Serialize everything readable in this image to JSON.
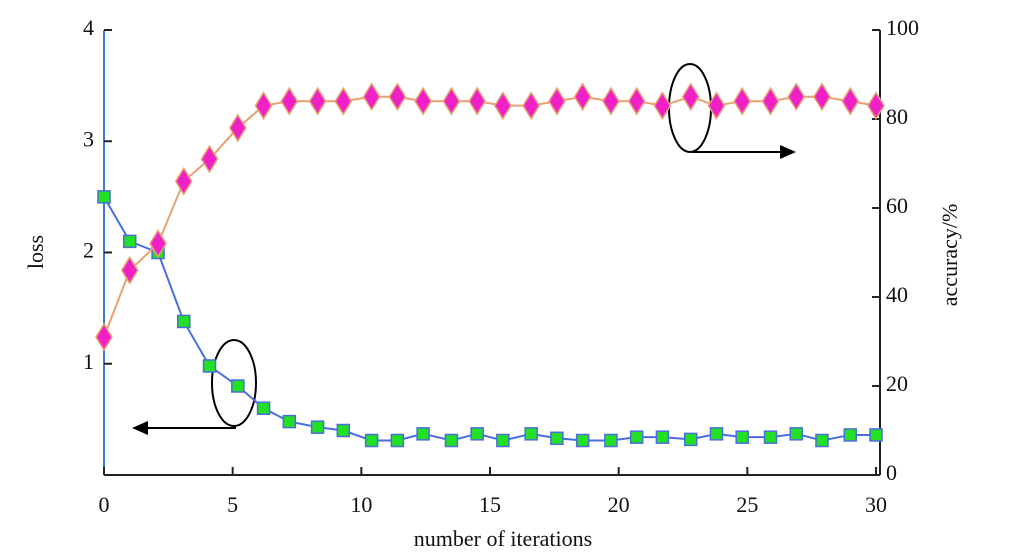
{
  "chart_data": {
    "type": "line",
    "xlabel": "number of iterations",
    "ylabel": "loss",
    "y2label": "accuracy/%",
    "x": [
      0,
      1.0,
      2.1,
      3.1,
      4.1,
      5.2,
      6.2,
      7.2,
      8.3,
      9.3,
      10.4,
      11.4,
      12.4,
      13.5,
      14.5,
      15.5,
      16.6,
      17.6,
      18.6,
      19.7,
      20.7,
      21.7,
      22.8,
      23.8,
      24.8,
      25.9,
      26.9,
      27.9,
      29.0,
      30.0
    ],
    "xlim": [
      0,
      30
    ],
    "xticks": [
      0,
      5,
      10,
      15,
      20,
      25,
      30
    ],
    "ylim": [
      0,
      4
    ],
    "yticks": [
      1,
      2,
      3,
      4
    ],
    "y2lim": [
      0,
      100
    ],
    "y2ticks": [
      0,
      20,
      40,
      60,
      80,
      100
    ],
    "series": [
      {
        "name": "loss",
        "color": "#4a6ee0",
        "marker_color": "#22e022",
        "values": [
          2.5,
          2.1,
          2.0,
          1.38,
          0.98,
          0.8,
          0.6,
          0.48,
          0.43,
          0.4,
          0.31,
          0.31,
          0.37,
          0.31,
          0.37,
          0.31,
          0.37,
          0.33,
          0.31,
          0.31,
          0.34,
          0.34,
          0.32,
          0.37,
          0.34,
          0.34,
          0.37,
          0.31,
          0.36,
          0.36
        ]
      },
      {
        "name": "accuracy",
        "axis": "y2",
        "color": "#e8a070",
        "marker_color": "#f020c8",
        "values": [
          31,
          46,
          52,
          66,
          71,
          78,
          83,
          84,
          84,
          84,
          85,
          85,
          84,
          84,
          84,
          83,
          83,
          84,
          85,
          84,
          84,
          83,
          85,
          83,
          84,
          84,
          85,
          85,
          84,
          83
        ]
      }
    ]
  }
}
